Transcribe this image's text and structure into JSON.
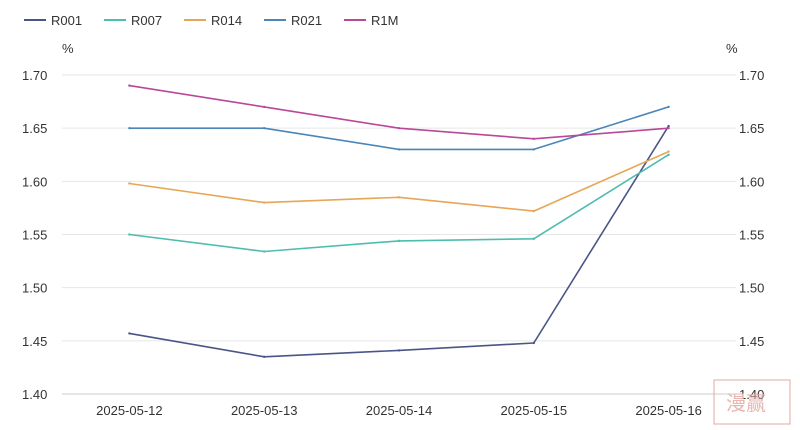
{
  "chart_data": {
    "type": "line",
    "x": [
      "2025-05-12",
      "2025-05-13",
      "2025-05-14",
      "2025-05-15",
      "2025-05-16"
    ],
    "series": [
      {
        "name": "R001",
        "color": "#4a5587",
        "values": [
          1.457,
          1.435,
          1.441,
          1.448,
          1.652
        ]
      },
      {
        "name": "R007",
        "color": "#4dbdad",
        "values": [
          1.55,
          1.534,
          1.544,
          1.546,
          1.625
        ]
      },
      {
        "name": "R014",
        "color": "#e7a657",
        "values": [
          1.598,
          1.58,
          1.585,
          1.572,
          1.628
        ]
      },
      {
        "name": "R021",
        "color": "#4a86b8",
        "values": [
          1.65,
          1.65,
          1.63,
          1.63,
          1.67
        ]
      },
      {
        "name": "R1M",
        "color": "#b9479a",
        "values": [
          1.69,
          1.67,
          1.65,
          1.64,
          1.65
        ]
      }
    ],
    "ylim": [
      1.4,
      1.7
    ],
    "yticks": [
      "1.40",
      "1.45",
      "1.50",
      "1.55",
      "1.60",
      "1.65",
      "1.70"
    ],
    "yunit_left": "%",
    "yunit_right": "%",
    "legend_position": "top-left",
    "grid": true
  },
  "watermark": {
    "text": "漫赢"
  }
}
